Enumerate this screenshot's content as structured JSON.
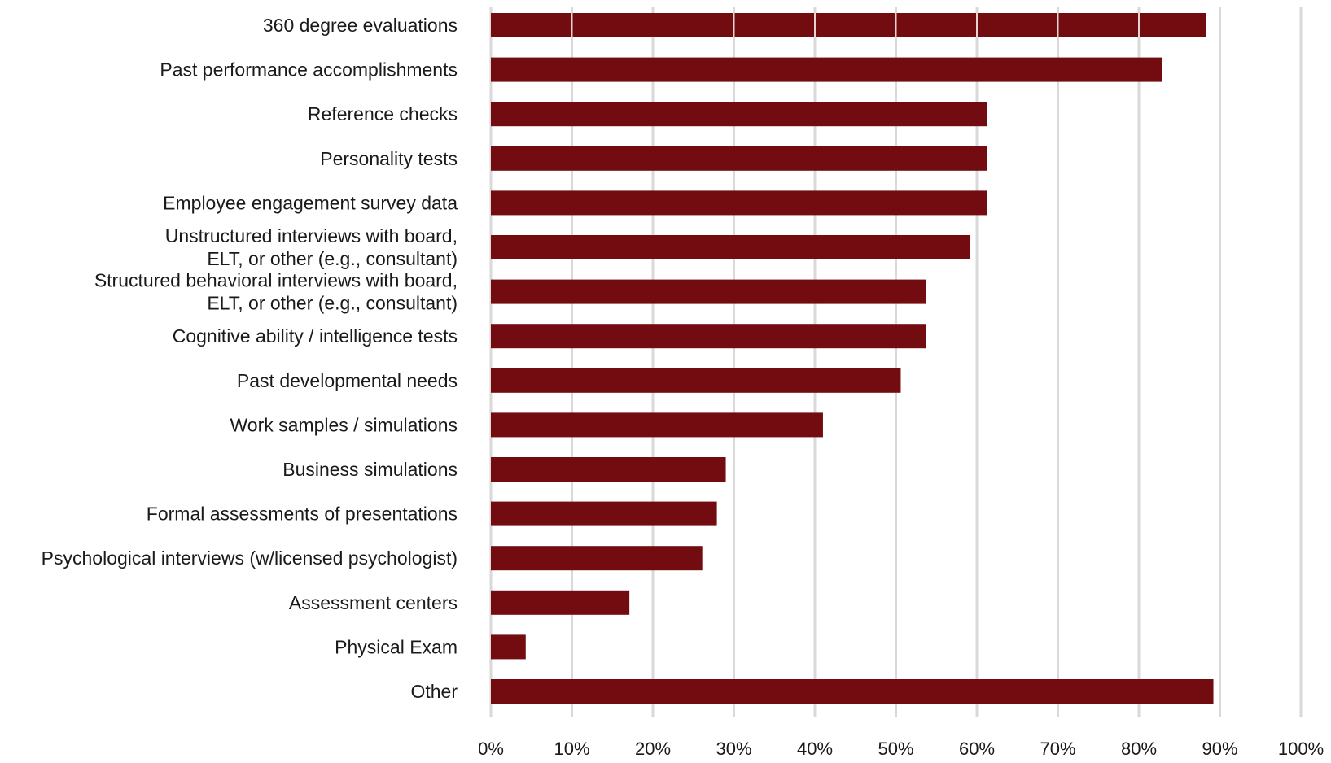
{
  "chart_data": {
    "type": "bar",
    "orientation": "horizontal",
    "categories": [
      [
        "360 degree evaluations"
      ],
      [
        "Past performance accomplishments"
      ],
      [
        "Reference checks"
      ],
      [
        "Personality tests"
      ],
      [
        "Employee engagement survey data"
      ],
      [
        "Unstructured interviews with board,",
        "ELT, or other (e.g., consultant)"
      ],
      [
        "Structured behavioral interviews with board,",
        "ELT, or other (e.g., consultant)"
      ],
      [
        "Cognitive ability / intelligence tests"
      ],
      [
        "Past developmental needs"
      ],
      [
        "Work samples / simulations"
      ],
      [
        "Business simulations"
      ],
      [
        "Formal assessments of presentations"
      ],
      [
        "Psychological interviews (w/licensed psychologist)"
      ],
      [
        "Assessment centers"
      ],
      [
        "Physical Exam"
      ],
      [
        "Other"
      ]
    ],
    "values": [
      88.3,
      82.9,
      61.3,
      61.3,
      61.3,
      59.2,
      53.7,
      53.7,
      50.6,
      41.0,
      29.0,
      27.9,
      26.1,
      17.1,
      4.3,
      89.2
    ],
    "xlim": [
      0,
      100
    ],
    "xticks": [
      0,
      10,
      20,
      30,
      40,
      50,
      60,
      70,
      80,
      90,
      100
    ],
    "tick_suffix": "%",
    "grid": true,
    "legend": "none",
    "title": "",
    "xlabel": "",
    "ylabel": ""
  },
  "colors": {
    "bar": "#730c10",
    "grid": "#d9d9d9",
    "text": "#1a1a1a"
  }
}
